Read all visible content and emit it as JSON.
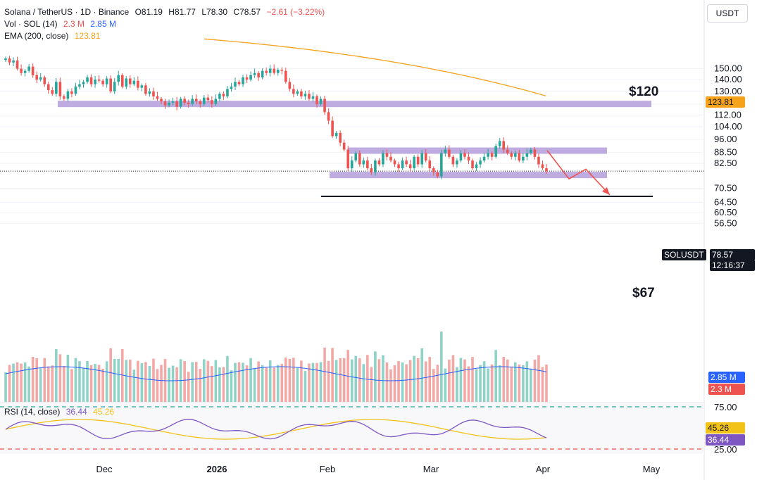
{
  "header": {
    "symbol": "Solana / TetherUS · 1D · Binance",
    "open_label": "O",
    "open": "81.19",
    "high_label": "H",
    "high": "81.77",
    "low_label": "L",
    "low": "78.30",
    "close_label": "C",
    "close": "78.57",
    "change": "−2.61 (−3.22%)",
    "vol_label": "Vol · SOL (14)",
    "vol_value": "2.3 M",
    "vol_ma": "2.85 M",
    "ema_label": "EMA (200, close)",
    "ema_value": "123.81"
  },
  "price_scale": {
    "currency": "USDT"
  },
  "rsi_header": {
    "label": "RSI (14, close)",
    "rsi": "36.44",
    "ma": "45.26"
  },
  "tags": {
    "ema": "123.81",
    "symbol": "SOLUSDT",
    "price": "78.57",
    "countdown": "12:16:37",
    "vol_ma": "2.85 M",
    "vol": "2.3 M",
    "rsi_ma": "45.26",
    "rsi": "36.44"
  },
  "annotations": {
    "upper_level": "$120",
    "lower_target": "$67"
  },
  "colors": {
    "up": "#26a69a",
    "down": "#ef5350",
    "up_vol": "#8fd2c7",
    "down_vol": "#f4a8a6",
    "ema": "#f7a21b",
    "zone": "#b39ddb",
    "arrow": "#ef5350",
    "rsi": "#7e57c2",
    "rsi_ma": "#f2c218",
    "vol_ma": "#2962ff"
  },
  "chart_data": [
    {
      "type": "candlestick",
      "interval": "1D",
      "x_ticks": [
        "Dec",
        "2026",
        "Feb",
        "Mar",
        "Apr",
        "May"
      ],
      "y_ticks": [
        150.0,
        140.0,
        130.0,
        120.0,
        112.0,
        104.0,
        96.0,
        88.5,
        82.5,
        70.5,
        64.5,
        60.5,
        56.5
      ],
      "y_scale": "log",
      "last_close": 78.57,
      "ema_200": {
        "from": 181,
        "to": 123.81
      },
      "zones": [
        {
          "low": 119.5,
          "high": 122.5,
          "label": "$120"
        },
        {
          "low": 89.5,
          "high": 91.2
        },
        {
          "low": 76.6,
          "high": 78.2
        }
      ],
      "target_line": 67,
      "projected_path": [
        89.5,
        76.5,
        73.3,
        78.8,
        67.6
      ],
      "closes": [
        160,
        156,
        158,
        150,
        146,
        148,
        152,
        144,
        140,
        142,
        136,
        131,
        128,
        138,
        126,
        124,
        130,
        128,
        134,
        136,
        138,
        142,
        136,
        140,
        139,
        136,
        141,
        130,
        138,
        144,
        134,
        141,
        136,
        139,
        133,
        135,
        128,
        130,
        126,
        124,
        122,
        119,
        121,
        122,
        118,
        124,
        121,
        120,
        124,
        122,
        120,
        125,
        123,
        120,
        124,
        128,
        126,
        132,
        134,
        138,
        136,
        142,
        140,
        144,
        146,
        142,
        148,
        146,
        150,
        146,
        149,
        148,
        138,
        132,
        128,
        130,
        126,
        128,
        124,
        126,
        120,
        124,
        114,
        108,
        98,
        100,
        94,
        90,
        80,
        84,
        88,
        82,
        84,
        80,
        78,
        84,
        82,
        88,
        86,
        84,
        82,
        80,
        84,
        82,
        80,
        86,
        82,
        88,
        84,
        80,
        78,
        76,
        88,
        90,
        86,
        82,
        84,
        88,
        86,
        84,
        80,
        82,
        84,
        86,
        88,
        86,
        92,
        95,
        90,
        88,
        86,
        88,
        84,
        86,
        88,
        90,
        86,
        82,
        80,
        78.57
      ],
      "volume": {
        "ma_last": "2.85 M",
        "last": "2.3 M"
      },
      "rsi": {
        "last": 36.44,
        "ma_last": 45.26,
        "levels": [
          75,
          25
        ]
      }
    }
  ]
}
